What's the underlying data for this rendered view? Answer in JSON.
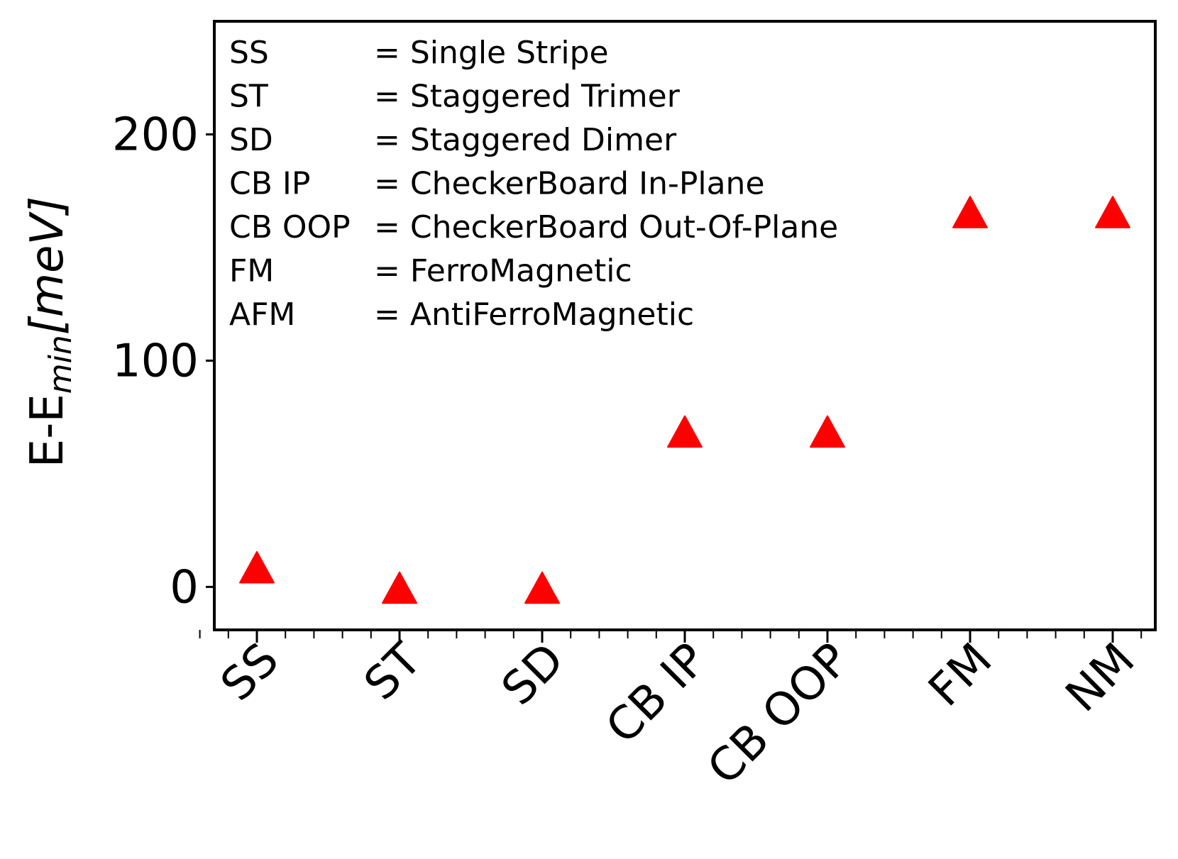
{
  "chart_data": {
    "type": "scatter",
    "categories": [
      "SS",
      "ST",
      "SD",
      "CB IP",
      "CB OOP",
      "FM",
      "NM"
    ],
    "values": [
      8,
      -1,
      -1,
      68,
      68,
      165,
      165
    ],
    "ylabel_main": "E-E",
    "ylabel_sub": "min",
    "ylabel_unit": "[meV]",
    "ylim": [
      -19,
      250
    ],
    "yticks": [
      "0",
      "100",
      "200"
    ],
    "ytick_values": [
      0,
      100,
      200
    ],
    "marker": "triangle-up",
    "marker_color": "#ff0000",
    "grid": false,
    "legend_position": "top-left",
    "legend": [
      {
        "abbr": "SS",
        "full": "= Single Stripe"
      },
      {
        "abbr": "ST",
        "full": "= Staggered Trimer"
      },
      {
        "abbr": "SD",
        "full": "= Staggered Dimer"
      },
      {
        "abbr": "CB IP",
        "full": "= CheckerBoard In-Plane"
      },
      {
        "abbr": "CB OOP",
        "full": "= CheckerBoard Out-Of-Plane"
      },
      {
        "abbr": "FM",
        "full": "= FerroMagnetic"
      },
      {
        "abbr": "AFM",
        "full": "= AntiFerroMagnetic"
      }
    ]
  }
}
